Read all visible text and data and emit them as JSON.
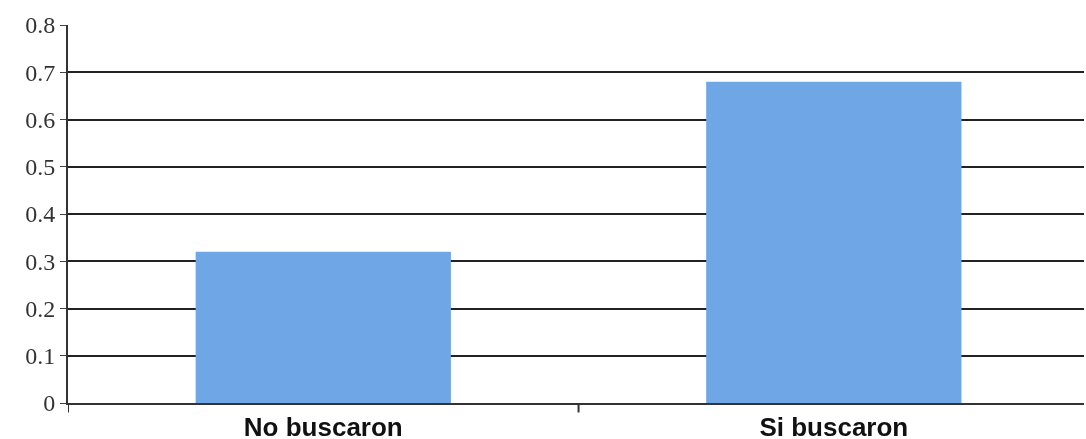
{
  "chart_data": {
    "type": "bar",
    "categories": [
      "No buscaron",
      "Si buscaron"
    ],
    "values": [
      0.32,
      0.68
    ],
    "color": "#6fa6e6",
    "ylim": [
      0,
      0.8
    ],
    "yticks": [
      0,
      {
        "value": 0.1,
        "label": "0.1"
      },
      {
        "value": 0.2,
        "label": "0.2"
      },
      {
        "value": 0.3,
        "label": "0.3"
      },
      {
        "value": 0.4,
        "label": "0.4"
      },
      {
        "value": 0.5,
        "label": "0.5"
      },
      {
        "value": 0.6,
        "label": "0.6"
      },
      {
        "value": 0.7,
        "label": "0.7"
      },
      {
        "value": 0.8,
        "label": "0.8"
      }
    ],
    "grid": "y"
  }
}
